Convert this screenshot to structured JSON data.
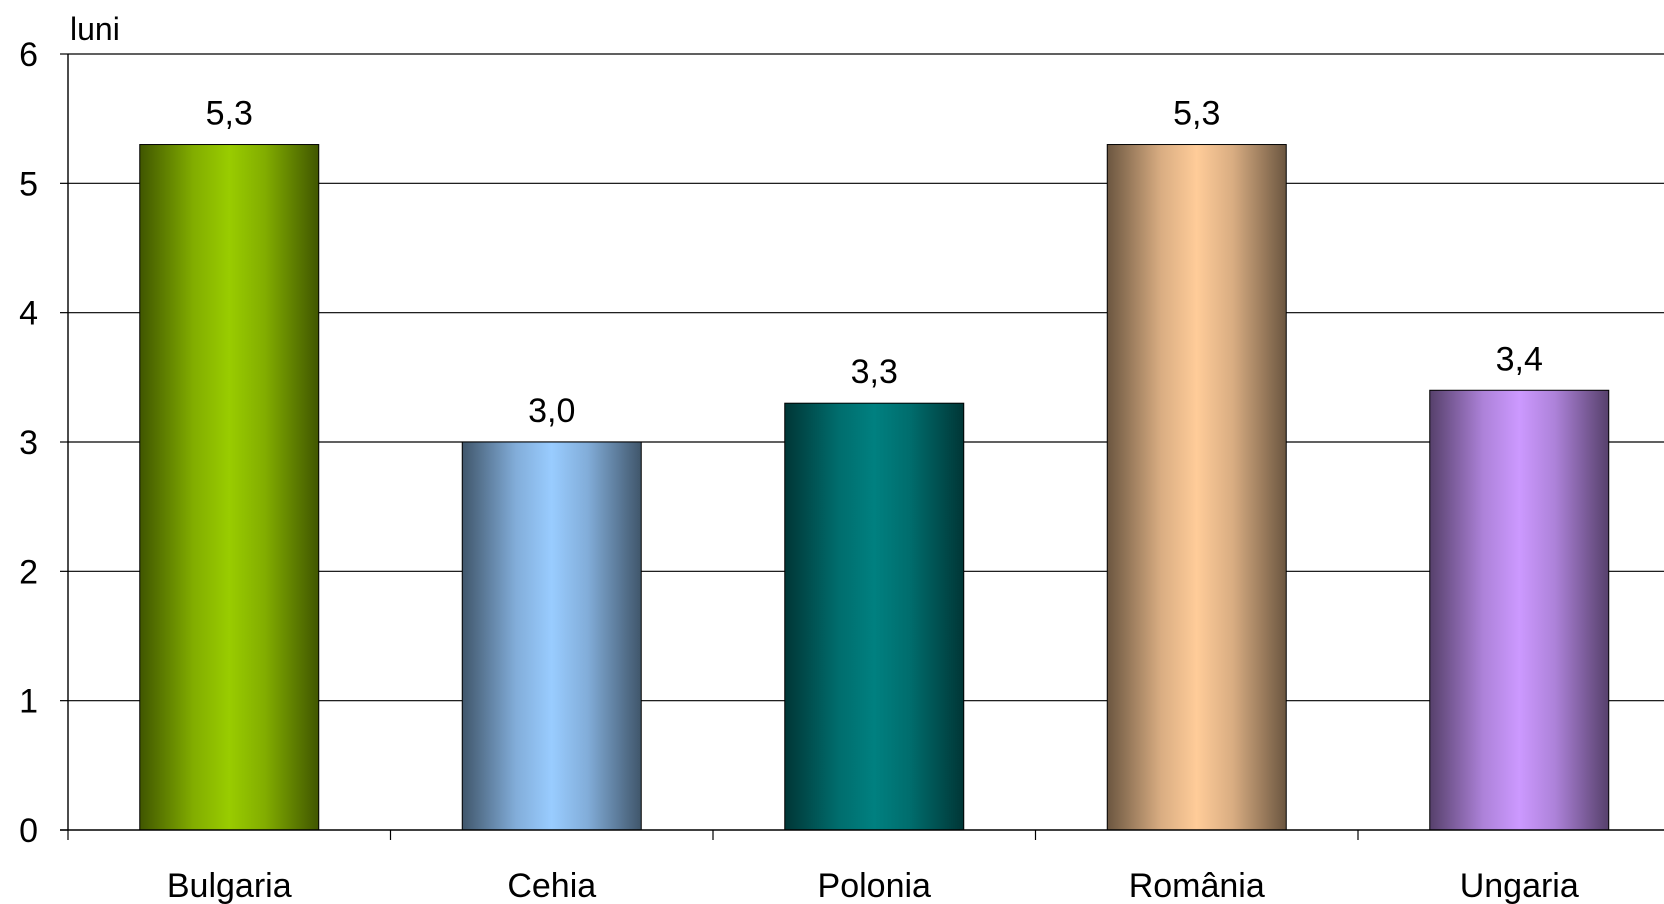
{
  "chart_data": {
    "type": "bar",
    "unit_label": "luni",
    "categories": [
      "Bulgaria",
      "Cehia",
      "Polonia",
      "România",
      "Ungaria"
    ],
    "values": [
      5.3,
      3.0,
      3.3,
      5.3,
      3.4
    ],
    "value_labels": [
      "5,3",
      "3,0",
      "3,3",
      "5,3",
      "3,4"
    ],
    "bar_colors": [
      "#99cc00",
      "#99ccff",
      "#008080",
      "#ffcc99",
      "#cc99ff"
    ],
    "ylim": [
      0,
      6
    ],
    "yticks": [
      0,
      1,
      2,
      3,
      4,
      5,
      6
    ],
    "grid": true,
    "legend": "none"
  }
}
